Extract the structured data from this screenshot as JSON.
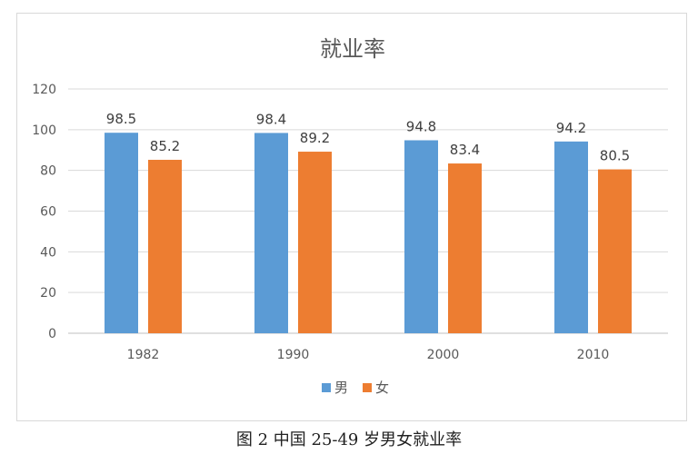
{
  "chart_data": {
    "type": "bar",
    "title": "就业率",
    "categories": [
      "1982",
      "1990",
      "2000",
      "2010"
    ],
    "series": [
      {
        "name": "男",
        "values": [
          98.5,
          98.4,
          94.8,
          94.2
        ],
        "color": "#5B9BD5"
      },
      {
        "name": "女",
        "values": [
          85.2,
          89.2,
          83.4,
          80.5
        ],
        "color": "#ED7D31"
      }
    ],
    "yticks": [
      "0",
      "20",
      "40",
      "60",
      "80",
      "100",
      "120"
    ],
    "ylim": [
      0,
      120
    ],
    "grid": true,
    "legend": "bottom",
    "data_labels": [
      "98.5",
      "85.2",
      "98.4",
      "89.2",
      "94.8",
      "83.4",
      "94.2",
      "80.5"
    ]
  },
  "caption": "图 2 中国 25-49 岁男女就业率"
}
